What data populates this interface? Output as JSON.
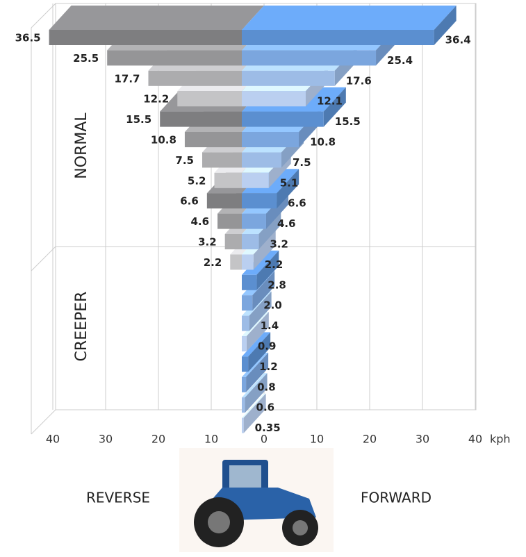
{
  "chart_data": {
    "type": "butterfly",
    "group_labels": [
      "NORMAL",
      "CREEPER"
    ],
    "direction_labels": [
      "REVERSE",
      "FORWARD"
    ],
    "x_unit": "kph",
    "xlim": [
      -40,
      40
    ],
    "xticks": [
      {
        "value": -40,
        "label": "40"
      },
      {
        "value": -30,
        "label": "30"
      },
      {
        "value": -20,
        "label": "20"
      },
      {
        "value": -10,
        "label": "10"
      },
      0,
      10,
      20,
      30,
      40
    ],
    "grid": true,
    "series": [
      {
        "name": "REVERSE",
        "side": "left",
        "colors": [
          "#7e7e80",
          "#959597",
          "#acacae",
          "#c4c4c6"
        ],
        "values": [
          36.5,
          25.5,
          17.7,
          12.2,
          15.5,
          10.8,
          7.5,
          5.2,
          6.6,
          4.6,
          3.2,
          2.2,
          null,
          null,
          null,
          null,
          null,
          null,
          null,
          null
        ]
      },
      {
        "name": "FORWARD",
        "side": "right",
        "colors": [
          "#5b8fd0",
          "#7ba6de",
          "#9dbce6",
          "#bacff0"
        ],
        "values": [
          36.4,
          25.4,
          17.6,
          12.1,
          15.5,
          10.8,
          7.5,
          5.1,
          6.6,
          4.6,
          3.2,
          2.2,
          2.8,
          2.0,
          1.4,
          0.9,
          1.2,
          0.8,
          0.6,
          0.35
        ],
        "value_labels": [
          "36.4",
          "25.4",
          "17.6",
          "12.1",
          "15.5",
          "10.8",
          "7.5",
          "5.1",
          "6.6",
          "4.6",
          "3.2",
          "2.2",
          "2.8",
          "2.0",
          "1.4",
          "0.9",
          "1.2",
          "0.8",
          "0.6",
          "0.35"
        ]
      }
    ]
  }
}
